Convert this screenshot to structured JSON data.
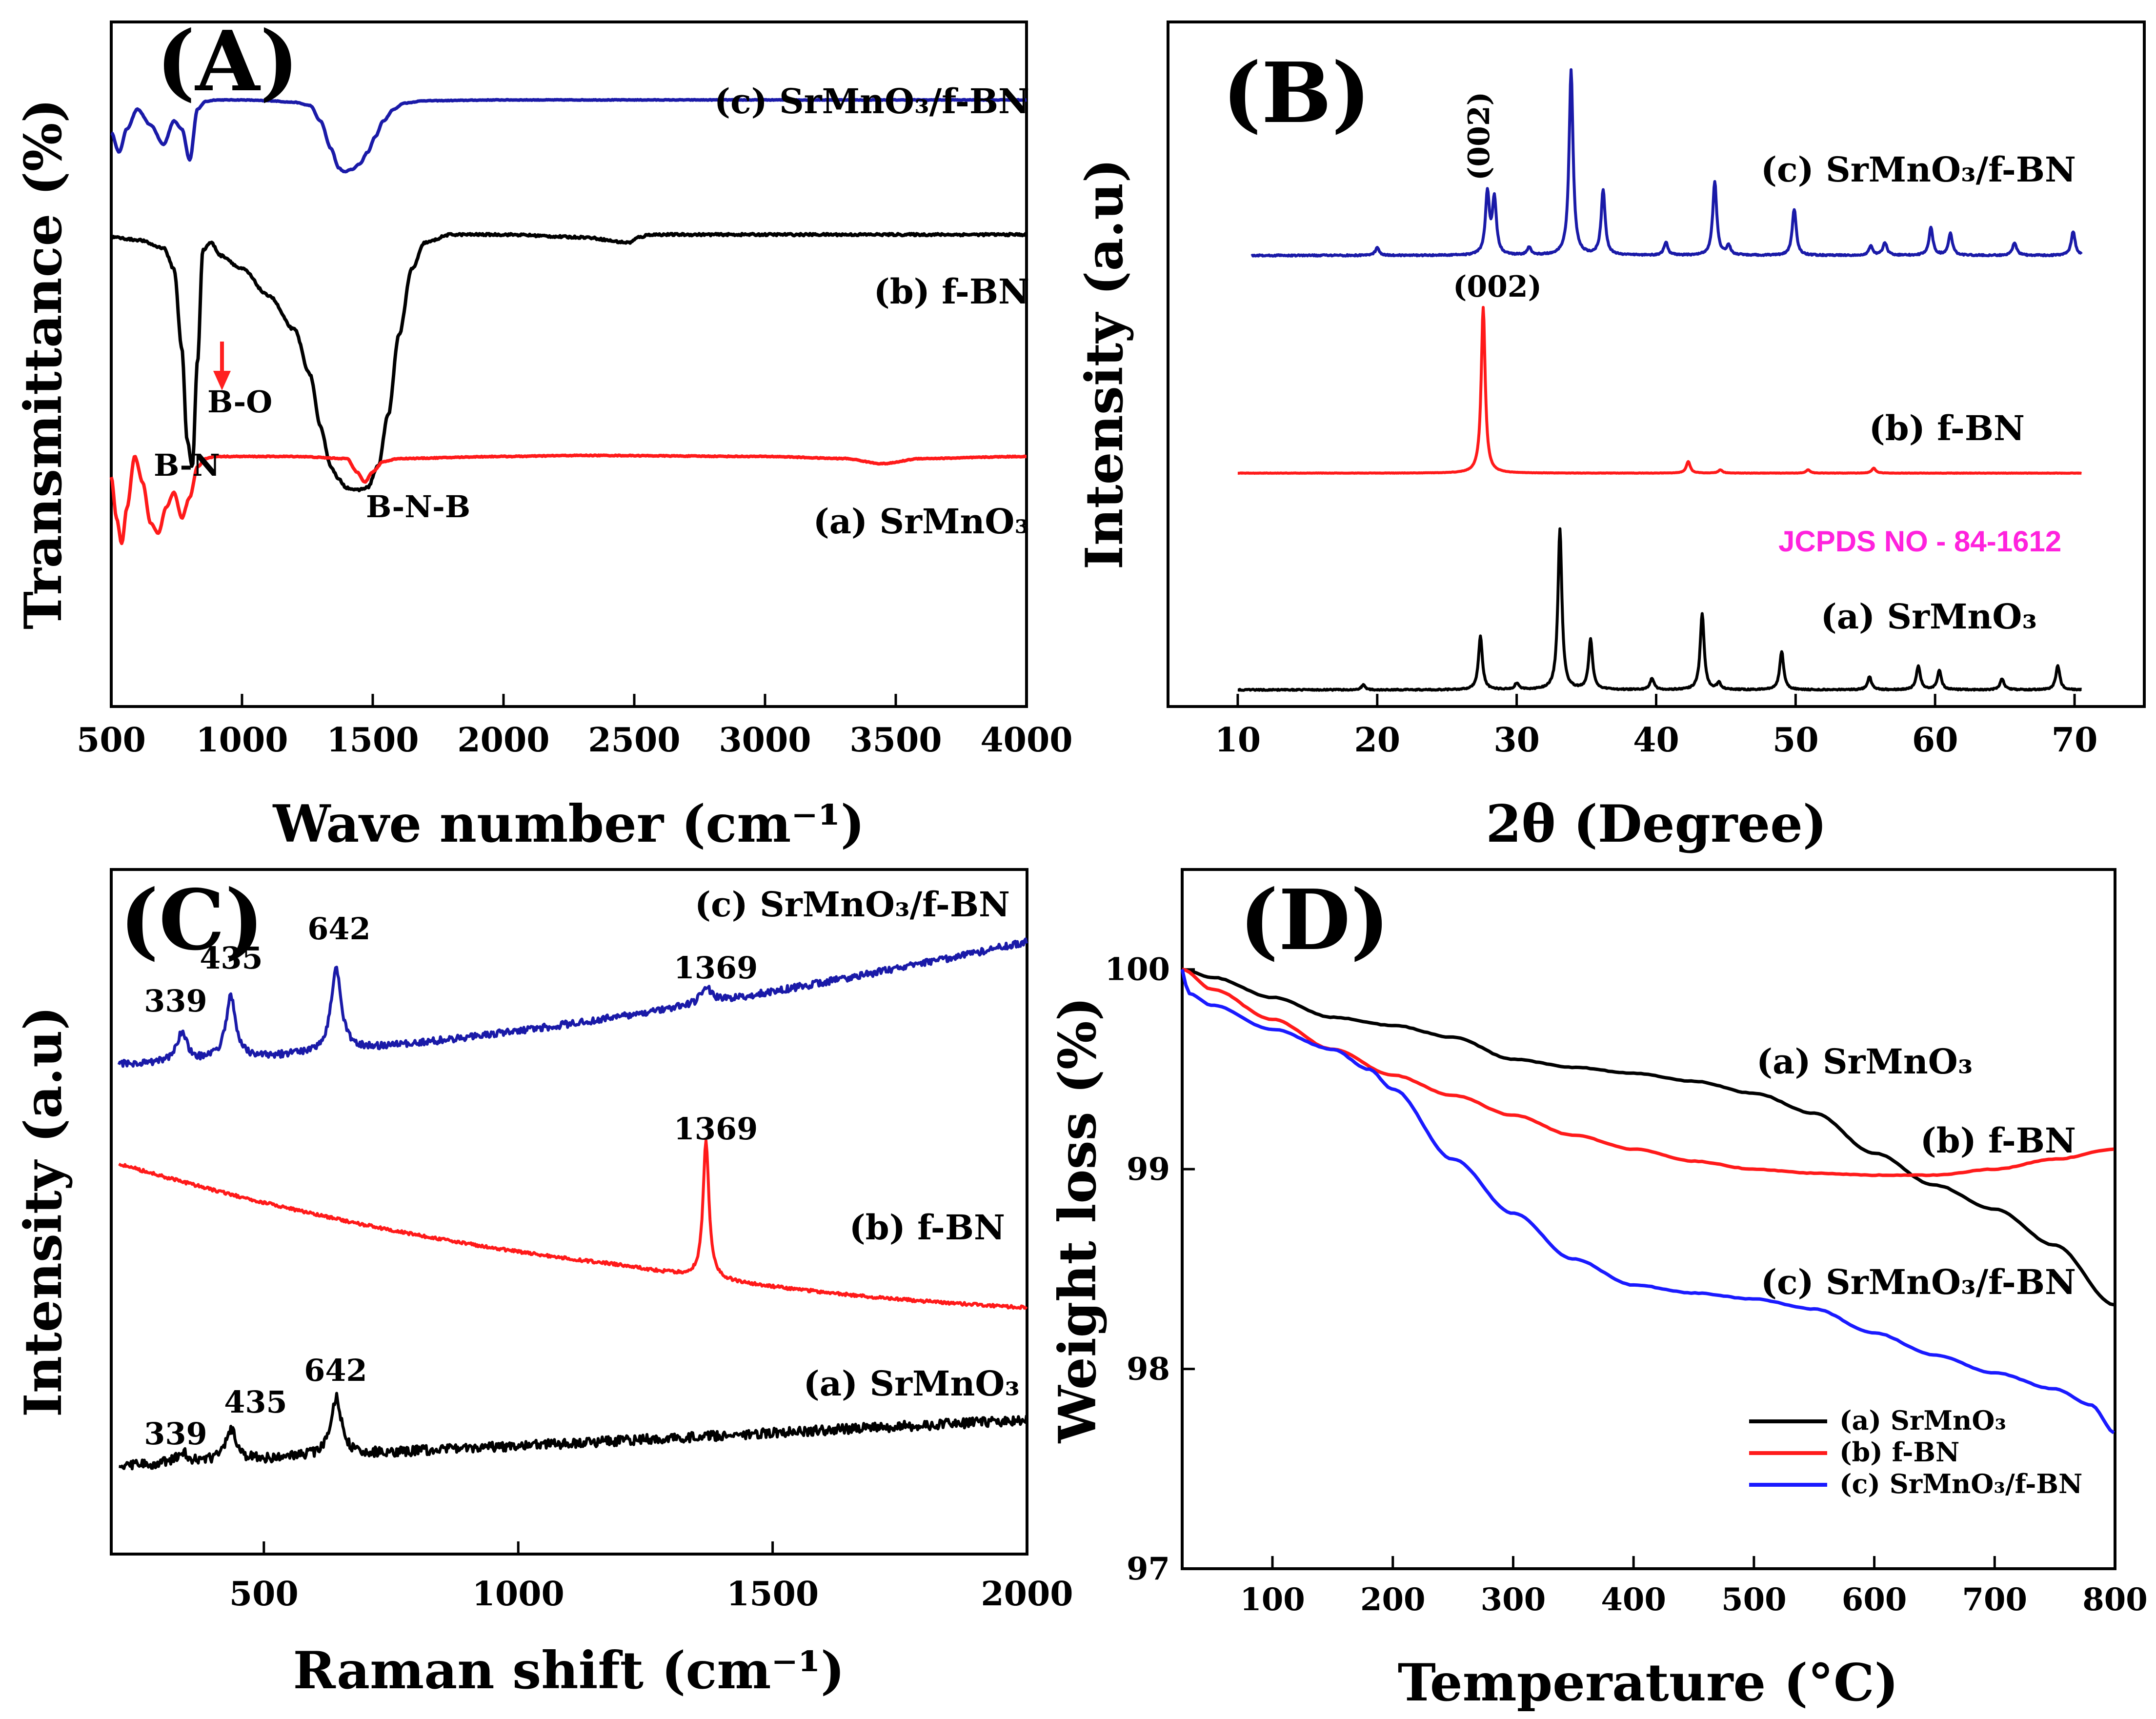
{
  "colors": {
    "black": "#000000",
    "red": "#ff1a1a",
    "blue": "#1a1aa8",
    "bright_blue": "#1a1aff",
    "magenta": "#ff22dd",
    "arrow": "#ff2020"
  },
  "chart_data": [
    {
      "panel_label": "(A)",
      "type": "line",
      "title": "",
      "xlabel": "Wave number (cm⁻¹)",
      "ylabel": "Transmittance (%)",
      "xlim": [
        500,
        4000
      ],
      "xticks": [
        "500",
        "1000",
        "1500",
        "2000",
        "2500",
        "3000",
        "3500",
        "4000"
      ],
      "grid": false,
      "series": [
        {
          "name": "(c) SrMnO₃/f-BN",
          "color": "#1a1aa8",
          "x": [
            500,
            530,
            560,
            600,
            650,
            700,
            740,
            770,
            800,
            830,
            860,
            900,
            1000,
            1100,
            1200,
            1260,
            1300,
            1340,
            1370,
            1390,
            1420,
            1450,
            1480,
            1510,
            1540,
            1580,
            1620,
            1700,
            2000,
            2500,
            3000,
            3500,
            4000
          ],
          "y": [
            0.55,
            0.3,
            0.6,
            0.85,
            0.65,
            0.4,
            0.7,
            0.6,
            0.2,
            0.85,
            0.95,
            0.97,
            0.97,
            0.96,
            0.94,
            0.9,
            0.7,
            0.35,
            0.1,
            0.05,
            0.08,
            0.15,
            0.3,
            0.5,
            0.7,
            0.85,
            0.93,
            0.96,
            0.97,
            0.97,
            0.97,
            0.97,
            0.97
          ]
        },
        {
          "name": "(b) f-BN",
          "color": "#000000",
          "x": [
            500,
            600,
            700,
            740,
            770,
            790,
            810,
            830,
            850,
            880,
            920,
            1000,
            1100,
            1200,
            1260,
            1300,
            1340,
            1370,
            1400,
            1440,
            1480,
            1520,
            1560,
            1600,
            1650,
            1700,
            1800,
            2000,
            2300,
            2480,
            2520,
            2560,
            3000,
            3400,
            4000
          ],
          "y": [
            0.97,
            0.96,
            0.93,
            0.85,
            0.55,
            0.2,
            0.1,
            0.5,
            0.92,
            0.95,
            0.9,
            0.85,
            0.75,
            0.62,
            0.45,
            0.25,
            0.1,
            0.05,
            0.02,
            0.01,
            0.02,
            0.1,
            0.3,
            0.6,
            0.85,
            0.95,
            0.98,
            0.98,
            0.97,
            0.95,
            0.97,
            0.98,
            0.98,
            0.98,
            0.98
          ]
        },
        {
          "name": "(a) SrMnO₃",
          "color": "#ff1a1a",
          "x": [
            500,
            520,
            540,
            560,
            590,
            620,
            650,
            680,
            710,
            740,
            770,
            800,
            830,
            860,
            900,
            1000,
            1200,
            1400,
            1440,
            1470,
            1500,
            1540,
            1600,
            2000,
            2300,
            3000,
            3300,
            3450,
            3600,
            4000
          ],
          "y": [
            0.75,
            0.35,
            0.1,
            0.45,
            0.95,
            0.7,
            0.3,
            0.2,
            0.45,
            0.6,
            0.35,
            0.55,
            0.85,
            0.93,
            0.95,
            0.95,
            0.95,
            0.93,
            0.8,
            0.7,
            0.8,
            0.9,
            0.93,
            0.95,
            0.96,
            0.95,
            0.93,
            0.88,
            0.93,
            0.95
          ]
        }
      ],
      "annotations": [
        "B-N",
        "B-O",
        "B-N-B"
      ]
    },
    {
      "panel_label": "(B)",
      "type": "line",
      "title": "",
      "xlabel": "2θ (Degree)",
      "ylabel": "Intensity (a.u)",
      "xlim": [
        5,
        75
      ],
      "xticks": [
        "10",
        "20",
        "30",
        "40",
        "50",
        "60",
        "70"
      ],
      "grid": false,
      "series": [
        {
          "name": "(c) SrMnO₃/f-BN",
          "color": "#1a1aa8",
          "baseline": [
            11,
            70.5
          ],
          "peaks": [
            [
              20,
              0.04
            ],
            [
              27.9,
              0.33
            ],
            [
              28.4,
              0.3
            ],
            [
              30.9,
              0.04
            ],
            [
              33.9,
              1.0
            ],
            [
              36.2,
              0.35
            ],
            [
              40.7,
              0.07
            ],
            [
              44.2,
              0.4
            ],
            [
              45.2,
              0.05
            ],
            [
              49.9,
              0.25
            ],
            [
              55.4,
              0.05
            ],
            [
              56.4,
              0.07
            ],
            [
              59.7,
              0.15
            ],
            [
              61.1,
              0.12
            ],
            [
              65.7,
              0.07
            ],
            [
              69.9,
              0.13
            ]
          ]
        },
        {
          "name": "(b) f-BN",
          "color": "#ff1a1a",
          "baseline": [
            10,
            70.5
          ],
          "peaks": [
            [
              27.6,
              1.0
            ],
            [
              42.3,
              0.07
            ],
            [
              44.6,
              0.02
            ],
            [
              50.9,
              0.02
            ],
            [
              55.6,
              0.03
            ]
          ]
        },
        {
          "name": "(a) SrMnO₃",
          "color": "#000000",
          "baseline": [
            10,
            70.5
          ],
          "peaks": [
            [
              19,
              0.03
            ],
            [
              27.4,
              0.33
            ],
            [
              30,
              0.04
            ],
            [
              33.1,
              1.0
            ],
            [
              35.3,
              0.31
            ],
            [
              39.7,
              0.07
            ],
            [
              43.3,
              0.47
            ],
            [
              44.5,
              0.04
            ],
            [
              49,
              0.24
            ],
            [
              55.3,
              0.08
            ],
            [
              58.8,
              0.15
            ],
            [
              60.3,
              0.12
            ],
            [
              64.8,
              0.07
            ],
            [
              68.8,
              0.15
            ]
          ]
        }
      ],
      "annotations": [
        "(002)",
        "(002)",
        "JCPDS NO - 84-1612"
      ]
    },
    {
      "panel_label": "(C)",
      "type": "line",
      "title": "",
      "xlabel": "Raman shift (cm⁻¹)",
      "ylabel": "Intensity (a.u)",
      "xlim": [
        200,
        2000
      ],
      "xticks": [
        "500",
        "1000",
        "1500",
        "2000"
      ],
      "grid": false,
      "series": [
        {
          "name": "(c) SrMnO₃/f-BN",
          "color": "#1a1aa8",
          "peaks": [
            [
              339,
              0.35
            ],
            [
              435,
              0.75
            ],
            [
              642,
              1.0
            ],
            [
              1369,
              0.2
            ]
          ]
        },
        {
          "name": "(b) f-BN",
          "color": "#ff1a1a",
          "peaks": [
            [
              1369,
              1.0
            ]
          ]
        },
        {
          "name": "(a) SrMnO₃",
          "color": "#000000",
          "peaks": [
            [
              339,
              0.2
            ],
            [
              435,
              0.55
            ],
            [
              642,
              1.0
            ]
          ]
        }
      ],
      "annotations": [
        "339",
        "435",
        "642",
        "1369",
        "1369",
        "339",
        "435",
        "642"
      ]
    },
    {
      "panel_label": "(D)",
      "type": "line",
      "title": "",
      "xlabel": "Temperature (°C)",
      "ylabel": "Weight loss (%)",
      "xlim": [
        25,
        800
      ],
      "ylim": [
        97,
        100.5
      ],
      "xticks": [
        "100",
        "200",
        "300",
        "400",
        "500",
        "600",
        "700",
        "800"
      ],
      "yticks": [
        "97",
        "98",
        "99",
        "100"
      ],
      "grid": false,
      "legend": "bottom-right",
      "series": [
        {
          "name": "(a) SrMnO₃",
          "color": "#000000",
          "x": [
            25,
            50,
            100,
            150,
            200,
            250,
            300,
            350,
            400,
            450,
            500,
            550,
            600,
            650,
            700,
            750,
            800
          ],
          "y": [
            100.0,
            99.96,
            99.86,
            99.76,
            99.72,
            99.66,
            99.55,
            99.51,
            99.48,
            99.44,
            99.38,
            99.28,
            99.08,
            98.92,
            98.8,
            98.62,
            98.32
          ]
        },
        {
          "name": "(b) f-BN",
          "color": "#ff1a1a",
          "x": [
            25,
            50,
            100,
            150,
            200,
            250,
            300,
            350,
            400,
            450,
            500,
            550,
            600,
            650,
            700,
            750,
            800
          ],
          "y": [
            100.0,
            99.9,
            99.75,
            99.6,
            99.47,
            99.37,
            99.27,
            99.17,
            99.1,
            99.04,
            99.0,
            98.98,
            98.97,
            98.97,
            99.0,
            99.05,
            99.1
          ]
        },
        {
          "name": "(c) SrMnO₃/f-BN",
          "color": "#1a1aff",
          "x": [
            25,
            30,
            50,
            100,
            150,
            180,
            200,
            250,
            300,
            350,
            400,
            450,
            500,
            550,
            600,
            650,
            700,
            750,
            780,
            800
          ],
          "y": [
            100.0,
            99.88,
            99.82,
            99.7,
            99.6,
            99.5,
            99.4,
            99.05,
            98.78,
            98.55,
            98.42,
            98.38,
            98.35,
            98.3,
            98.18,
            98.07,
            97.98,
            97.9,
            97.82,
            97.68
          ]
        }
      ]
    }
  ],
  "labels": {
    "A": {
      "panel": "(A)",
      "xlabel": "Wave number (cm⁻¹)",
      "ylabel": "Transmittance (%)",
      "c": "(c) SrMnO₃/f-BN",
      "b": "(b) f-BN",
      "a": "(a) SrMnO₃",
      "bn": "B-N",
      "bo": "B-O",
      "bnb": "B-N-B"
    },
    "B": {
      "panel": "(B)",
      "xlabel": "2θ (Degree)",
      "ylabel": "Intensity (a.u)",
      "c": "(c) SrMnO₃/f-BN",
      "b": "(b) f-BN",
      "a": "(a) SrMnO₃",
      "hkl_c": "(002)",
      "hkl_b": "(002)",
      "jcpds": "JCPDS NO - 84-1612"
    },
    "C": {
      "panel": "(C)",
      "xlabel": "Raman shift (cm⁻¹)",
      "ylabel": "Intensity (a.u)",
      "c": "(c) SrMnO₃/f-BN",
      "b": "(b) f-BN",
      "a": "(a) SrMnO₃",
      "c_p1": "339",
      "c_p2": "435",
      "c_p3": "642",
      "c_p4": "1369",
      "b_p1": "1369",
      "a_p1": "339",
      "a_p2": "435",
      "a_p3": "642"
    },
    "D": {
      "panel": "(D)",
      "xlabel": "Temperature (°C)",
      "ylabel": "Weight loss (%)",
      "a": "(a) SrMnO₃",
      "b": "(b) f-BN",
      "c": "(c) SrMnO₃/f-BN",
      "legend_a": "(a) SrMnO₃",
      "legend_b": "(b) f-BN",
      "legend_c": "(c) SrMnO₃/f-BN"
    }
  }
}
